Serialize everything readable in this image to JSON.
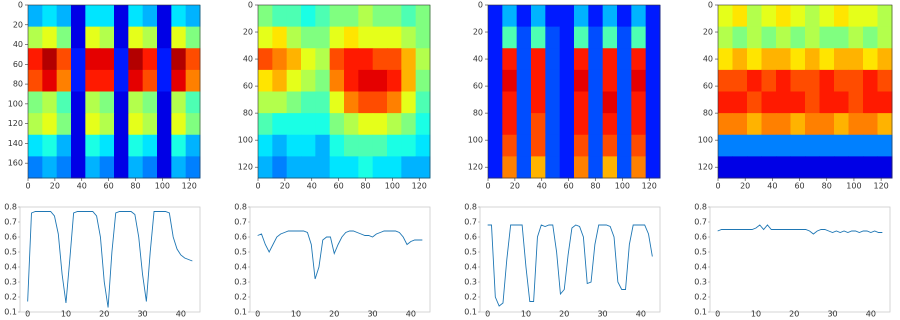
{
  "chart_data": [
    {
      "type": "heatmap",
      "colormap": "jet",
      "xlim": [
        0,
        128
      ],
      "ylim": [
        175,
        0
      ],
      "xticks": [
        0,
        20,
        40,
        60,
        80,
        100,
        120
      ],
      "yticks": [
        0,
        20,
        40,
        60,
        80,
        100,
        120,
        140,
        160
      ],
      "z": [
        [
          0.3,
          0.35,
          0.3,
          0.1,
          0.35,
          0.35,
          0.1,
          0.35,
          0.3,
          0.1,
          0.35,
          0.3
        ],
        [
          0.55,
          0.6,
          0.5,
          0.1,
          0.6,
          0.55,
          0.1,
          0.6,
          0.55,
          0.1,
          0.6,
          0.5
        ],
        [
          0.85,
          0.95,
          0.8,
          0.15,
          0.9,
          0.9,
          0.15,
          0.95,
          0.85,
          0.15,
          0.95,
          0.8
        ],
        [
          0.8,
          0.9,
          0.75,
          0.15,
          0.85,
          0.85,
          0.15,
          0.9,
          0.8,
          0.15,
          0.9,
          0.75
        ],
        [
          0.5,
          0.55,
          0.45,
          0.1,
          0.55,
          0.5,
          0.1,
          0.55,
          0.5,
          0.1,
          0.55,
          0.45
        ],
        [
          0.55,
          0.6,
          0.5,
          0.1,
          0.6,
          0.55,
          0.1,
          0.6,
          0.55,
          0.1,
          0.6,
          0.5
        ],
        [
          0.35,
          0.4,
          0.3,
          0.1,
          0.4,
          0.35,
          0.1,
          0.4,
          0.35,
          0.1,
          0.4,
          0.3
        ],
        [
          0.25,
          0.3,
          0.25,
          0.1,
          0.3,
          0.25,
          0.1,
          0.3,
          0.25,
          0.1,
          0.3,
          0.25
        ]
      ]
    },
    {
      "type": "heatmap",
      "colormap": "jet",
      "xlim": [
        0,
        128
      ],
      "ylim": [
        128,
        0
      ],
      "xticks": [
        0,
        20,
        40,
        60,
        80,
        100,
        120
      ],
      "yticks": [
        0,
        20,
        40,
        60,
        80,
        100,
        120
      ],
      "z": [
        [
          0.5,
          0.45,
          0.45,
          0.4,
          0.45,
          0.5,
          0.5,
          0.55,
          0.5,
          0.5,
          0.45,
          0.5
        ],
        [
          0.6,
          0.65,
          0.55,
          0.5,
          0.5,
          0.6,
          0.65,
          0.6,
          0.6,
          0.6,
          0.55,
          0.5
        ],
        [
          0.8,
          0.75,
          0.7,
          0.6,
          0.55,
          0.8,
          0.85,
          0.85,
          0.8,
          0.8,
          0.7,
          0.55
        ],
        [
          0.65,
          0.7,
          0.6,
          0.55,
          0.5,
          0.75,
          0.85,
          0.9,
          0.9,
          0.85,
          0.7,
          0.5
        ],
        [
          0.55,
          0.55,
          0.5,
          0.45,
          0.45,
          0.6,
          0.75,
          0.8,
          0.8,
          0.75,
          0.6,
          0.45
        ],
        [
          0.45,
          0.4,
          0.4,
          0.4,
          0.4,
          0.5,
          0.55,
          0.6,
          0.6,
          0.55,
          0.5,
          0.4
        ],
        [
          0.35,
          0.3,
          0.35,
          0.35,
          0.3,
          0.4,
          0.45,
          0.45,
          0.45,
          0.4,
          0.4,
          0.35
        ],
        [
          0.3,
          0.25,
          0.3,
          0.3,
          0.3,
          0.35,
          0.35,
          0.4,
          0.35,
          0.35,
          0.3,
          0.3
        ]
      ]
    },
    {
      "type": "heatmap",
      "colormap": "jet",
      "xlim": [
        0,
        128
      ],
      "ylim": [
        128,
        0
      ],
      "xticks": [
        0,
        20,
        40,
        60,
        80,
        100,
        120
      ],
      "yticks": [
        0,
        20,
        40,
        60,
        80,
        100,
        120
      ],
      "z": [
        [
          0.15,
          0.3,
          0.15,
          0.3,
          0.15,
          0.15,
          0.3,
          0.15,
          0.3,
          0.15,
          0.3,
          0.15
        ],
        [
          0.15,
          0.45,
          0.2,
          0.45,
          0.2,
          0.15,
          0.45,
          0.2,
          0.45,
          0.2,
          0.45,
          0.15
        ],
        [
          0.15,
          0.85,
          0.2,
          0.85,
          0.2,
          0.15,
          0.85,
          0.2,
          0.85,
          0.2,
          0.85,
          0.15
        ],
        [
          0.15,
          0.9,
          0.2,
          0.85,
          0.2,
          0.15,
          0.9,
          0.2,
          0.85,
          0.2,
          0.9,
          0.15
        ],
        [
          0.15,
          0.85,
          0.2,
          0.85,
          0.2,
          0.15,
          0.85,
          0.2,
          0.9,
          0.2,
          0.85,
          0.15
        ],
        [
          0.15,
          0.85,
          0.2,
          0.8,
          0.2,
          0.15,
          0.85,
          0.2,
          0.85,
          0.2,
          0.85,
          0.15
        ],
        [
          0.15,
          0.8,
          0.2,
          0.8,
          0.2,
          0.15,
          0.8,
          0.2,
          0.8,
          0.2,
          0.8,
          0.15
        ],
        [
          0.15,
          0.75,
          0.2,
          0.7,
          0.2,
          0.15,
          0.75,
          0.2,
          0.7,
          0.2,
          0.75,
          0.15
        ]
      ]
    },
    {
      "type": "heatmap",
      "colormap": "jet",
      "xlim": [
        0,
        128
      ],
      "ylim": [
        128,
        0
      ],
      "xticks": [
        0,
        20,
        40,
        60,
        80,
        100,
        120
      ],
      "yticks": [
        0,
        20,
        40,
        60,
        80,
        100,
        120
      ],
      "z": [
        [
          0.6,
          0.65,
          0.55,
          0.6,
          0.65,
          0.6,
          0.55,
          0.6,
          0.65,
          0.6,
          0.6,
          0.55
        ],
        [
          0.55,
          0.5,
          0.55,
          0.5,
          0.55,
          0.5,
          0.55,
          0.5,
          0.5,
          0.55,
          0.5,
          0.55
        ],
        [
          0.65,
          0.7,
          0.65,
          0.7,
          0.7,
          0.65,
          0.7,
          0.65,
          0.7,
          0.7,
          0.65,
          0.7
        ],
        [
          0.8,
          0.8,
          0.85,
          0.8,
          0.85,
          0.8,
          0.8,
          0.85,
          0.8,
          0.8,
          0.85,
          0.8
        ],
        [
          0.85,
          0.85,
          0.8,
          0.85,
          0.85,
          0.85,
          0.8,
          0.85,
          0.85,
          0.8,
          0.85,
          0.85
        ],
        [
          0.75,
          0.75,
          0.7,
          0.75,
          0.75,
          0.7,
          0.75,
          0.75,
          0.7,
          0.75,
          0.75,
          0.7
        ],
        [
          0.25,
          0.25,
          0.25,
          0.25,
          0.25,
          0.25,
          0.25,
          0.25,
          0.25,
          0.25,
          0.25,
          0.25
        ],
        [
          0.1,
          0.1,
          0.1,
          0.1,
          0.1,
          0.1,
          0.1,
          0.1,
          0.1,
          0.1,
          0.1,
          0.1
        ]
      ]
    },
    {
      "type": "line",
      "color": "#1f77b4",
      "xlim": [
        -2,
        45
      ],
      "ylim": [
        0.1,
        0.8
      ],
      "xticks": [
        0,
        10,
        20,
        30,
        40
      ],
      "yticks": [
        0.1,
        0.2,
        0.3,
        0.4,
        0.5,
        0.6,
        0.7,
        0.8
      ],
      "x": [
        0,
        1,
        2,
        3,
        4,
        5,
        6,
        7,
        8,
        9,
        10,
        11,
        12,
        13,
        14,
        15,
        16,
        17,
        18,
        19,
        20,
        21,
        22,
        23,
        24,
        25,
        26,
        27,
        28,
        29,
        30,
        31,
        32,
        33,
        34,
        35,
        36,
        37,
        38,
        39,
        40,
        41,
        42,
        43
      ],
      "values": [
        0.17,
        0.76,
        0.77,
        0.77,
        0.77,
        0.77,
        0.77,
        0.74,
        0.62,
        0.35,
        0.16,
        0.45,
        0.76,
        0.77,
        0.77,
        0.77,
        0.77,
        0.77,
        0.74,
        0.6,
        0.3,
        0.13,
        0.5,
        0.76,
        0.77,
        0.77,
        0.77,
        0.77,
        0.75,
        0.6,
        0.35,
        0.17,
        0.5,
        0.77,
        0.77,
        0.77,
        0.77,
        0.76,
        0.6,
        0.52,
        0.48,
        0.46,
        0.45,
        0.44
      ]
    },
    {
      "type": "line",
      "color": "#1f77b4",
      "xlim": [
        -2,
        45
      ],
      "ylim": [
        0.1,
        0.8
      ],
      "xticks": [
        0,
        10,
        20,
        30,
        40
      ],
      "yticks": [
        0.1,
        0.2,
        0.3,
        0.4,
        0.5,
        0.6,
        0.7,
        0.8
      ],
      "x": [
        0,
        1,
        2,
        3,
        4,
        5,
        6,
        7,
        8,
        9,
        10,
        11,
        12,
        13,
        14,
        15,
        16,
        17,
        18,
        19,
        20,
        21,
        22,
        23,
        24,
        25,
        26,
        27,
        28,
        29,
        30,
        31,
        32,
        33,
        34,
        35,
        36,
        37,
        38,
        39,
        40,
        41,
        42,
        43
      ],
      "values": [
        0.61,
        0.62,
        0.55,
        0.5,
        0.55,
        0.6,
        0.62,
        0.63,
        0.64,
        0.64,
        0.64,
        0.64,
        0.64,
        0.63,
        0.55,
        0.32,
        0.4,
        0.58,
        0.6,
        0.6,
        0.49,
        0.55,
        0.6,
        0.63,
        0.64,
        0.64,
        0.63,
        0.62,
        0.61,
        0.61,
        0.6,
        0.62,
        0.63,
        0.64,
        0.64,
        0.64,
        0.64,
        0.63,
        0.6,
        0.55,
        0.57,
        0.58,
        0.58,
        0.58
      ]
    },
    {
      "type": "line",
      "color": "#1f77b4",
      "xlim": [
        -2,
        45
      ],
      "ylim": [
        0.1,
        0.8
      ],
      "xticks": [
        0,
        10,
        20,
        30,
        40
      ],
      "yticks": [
        0.1,
        0.2,
        0.3,
        0.4,
        0.5,
        0.6,
        0.7,
        0.8
      ],
      "x": [
        0,
        1,
        2,
        3,
        4,
        5,
        6,
        7,
        8,
        9,
        10,
        11,
        12,
        13,
        14,
        15,
        16,
        17,
        18,
        19,
        20,
        21,
        22,
        23,
        24,
        25,
        26,
        27,
        28,
        29,
        30,
        31,
        32,
        33,
        34,
        35,
        36,
        37,
        38,
        39,
        40,
        41,
        42,
        43
      ],
      "values": [
        0.68,
        0.68,
        0.2,
        0.14,
        0.16,
        0.45,
        0.68,
        0.68,
        0.68,
        0.68,
        0.4,
        0.17,
        0.17,
        0.6,
        0.68,
        0.67,
        0.68,
        0.68,
        0.5,
        0.22,
        0.25,
        0.48,
        0.66,
        0.68,
        0.67,
        0.6,
        0.29,
        0.3,
        0.55,
        0.68,
        0.68,
        0.68,
        0.67,
        0.6,
        0.3,
        0.25,
        0.25,
        0.55,
        0.68,
        0.68,
        0.68,
        0.68,
        0.62,
        0.47
      ]
    },
    {
      "type": "line",
      "color": "#1f77b4",
      "xlim": [
        -2,
        45
      ],
      "ylim": [
        0.1,
        0.8
      ],
      "xticks": [
        0,
        10,
        20,
        30,
        40
      ],
      "yticks": [
        0.1,
        0.2,
        0.3,
        0.4,
        0.5,
        0.6,
        0.7,
        0.8
      ],
      "x": [
        0,
        1,
        2,
        3,
        4,
        5,
        6,
        7,
        8,
        9,
        10,
        11,
        12,
        13,
        14,
        15,
        16,
        17,
        18,
        19,
        20,
        21,
        22,
        23,
        24,
        25,
        26,
        27,
        28,
        29,
        30,
        31,
        32,
        33,
        34,
        35,
        36,
        37,
        38,
        39,
        40,
        41,
        42,
        43
      ],
      "values": [
        0.64,
        0.65,
        0.65,
        0.65,
        0.65,
        0.65,
        0.65,
        0.65,
        0.65,
        0.65,
        0.66,
        0.68,
        0.65,
        0.68,
        0.65,
        0.65,
        0.65,
        0.65,
        0.65,
        0.65,
        0.65,
        0.65,
        0.65,
        0.65,
        0.64,
        0.62,
        0.64,
        0.65,
        0.65,
        0.64,
        0.63,
        0.64,
        0.63,
        0.64,
        0.63,
        0.64,
        0.64,
        0.63,
        0.64,
        0.64,
        0.63,
        0.64,
        0.63,
        0.63
      ]
    }
  ]
}
